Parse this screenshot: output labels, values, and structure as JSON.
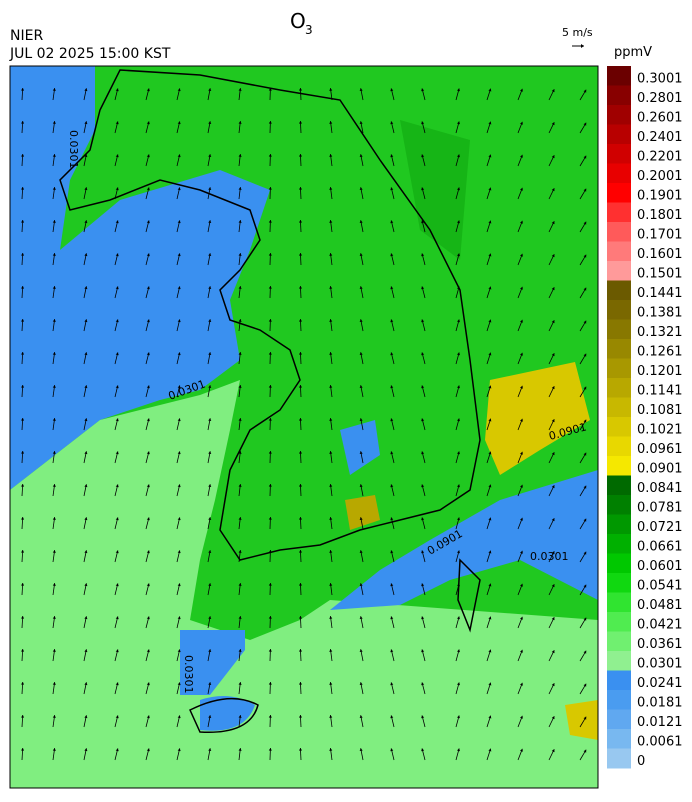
{
  "header": {
    "title": "O",
    "title_sub": "3",
    "agency": "NIER",
    "timestamp": "JUL 02 2025 15:00 KST",
    "wind_scale": "5 m/s"
  },
  "colorbar": {
    "unit": "ppmV",
    "labels": [
      "0.3001",
      "0.2801",
      "0.2601",
      "0.2401",
      "0.2201",
      "0.2001",
      "0.1901",
      "0.1801",
      "0.1701",
      "0.1601",
      "0.1501",
      "0.1441",
      "0.1381",
      "0.1321",
      "0.1261",
      "0.1201",
      "0.1141",
      "0.1081",
      "0.1021",
      "0.0961",
      "0.0901",
      "0.0841",
      "0.0781",
      "0.0721",
      "0.0661",
      "0.0601",
      "0.0541",
      "0.0481",
      "0.0421",
      "0.0361",
      "0.0301",
      "0.0241",
      "0.0181",
      "0.0121",
      "0.0061",
      "0"
    ],
    "colors": [
      "#6b0000",
      "#880000",
      "#a00000",
      "#b80000",
      "#d00000",
      "#e80000",
      "#ff0000",
      "#ff3030",
      "#ff5a5a",
      "#ff7a7a",
      "#ff9a9a",
      "#6b5a00",
      "#7a6800",
      "#887800",
      "#988800",
      "#a89800",
      "#b8a800",
      "#c8b800",
      "#d8c800",
      "#e8d800",
      "#f5e800",
      "#006a00",
      "#008000",
      "#009800",
      "#00b000",
      "#00c800",
      "#10d810",
      "#30e430",
      "#50ec50",
      "#70f070",
      "#90f090",
      "#3a90f0",
      "#4a9cf0",
      "#60a8f0",
      "#78b8f0",
      "#98c8f0"
    ]
  },
  "map": {
    "contour_labels": [
      "0.0301",
      "0.0901",
      "0.0301",
      "0.0301",
      "0.0901",
      "0.0301"
    ]
  }
}
